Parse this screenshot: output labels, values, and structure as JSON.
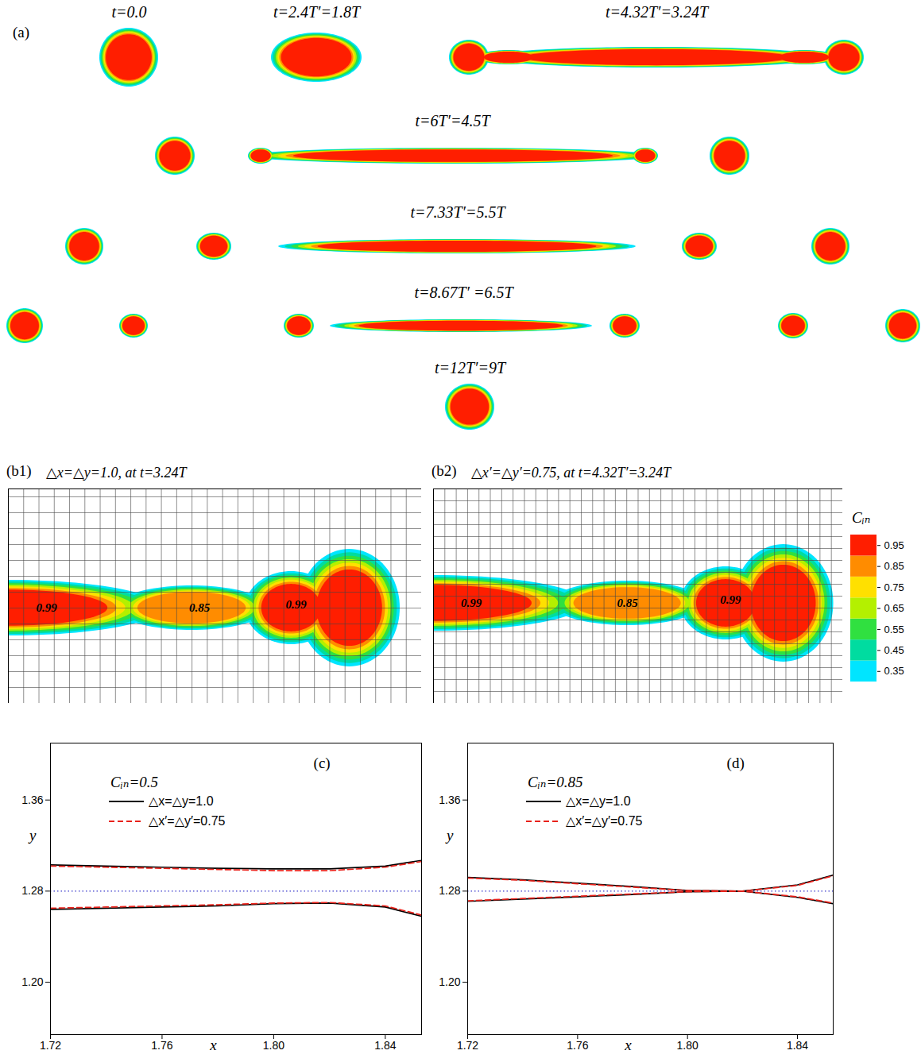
{
  "chart_data": [
    {
      "type": "droplet_snapshots",
      "panel": "(a)",
      "xlim": [
        0,
        1159
      ],
      "ylim": [
        0,
        545
      ],
      "tick_labels": false,
      "rows": [
        {
          "cy": 72,
          "labels": [
            "t=0.0",
            "t=2.4T′=1.8T",
            "t=4.32T′=3.24T"
          ],
          "drops": [
            {
              "cx": 162,
              "rx": 37,
              "ry": 37,
              "group": 0
            },
            {
              "cx": 398,
              "rx": 57,
              "ry": 31,
              "group": 1
            },
            {
              "cx": 590,
              "rx": 25,
              "ry": 22,
              "group": 2
            },
            {
              "cx": 640,
              "rx": 40,
              "ry": 9,
              "group": 2
            },
            {
              "cx": 826,
              "rx": 215,
              "ry": 13,
              "group": 2
            },
            {
              "cx": 1012,
              "rx": 40,
              "ry": 9,
              "group": 2
            },
            {
              "cx": 1062,
              "rx": 25,
              "ry": 22,
              "group": 2
            }
          ]
        },
        {
          "cy": 196,
          "labels": [
            "t=6T′=4.5T"
          ],
          "drops": [
            {
              "cx": 220,
              "rx": 25,
              "ry": 24,
              "group": 0
            },
            {
              "cx": 328,
              "rx": 16,
              "ry": 10,
              "group": 0
            },
            {
              "cx": 570,
              "rx": 258,
              "ry": 10,
              "group": 0
            },
            {
              "cx": 812,
              "rx": 16,
              "ry": 10,
              "group": 0
            },
            {
              "cx": 918,
              "rx": 25,
              "ry": 24,
              "group": 0
            }
          ]
        },
        {
          "cy": 310,
          "labels": [
            "t=7.33T′=5.5T"
          ],
          "drops": [
            {
              "cx": 106,
              "rx": 24,
              "ry": 23,
              "group": 0
            },
            {
              "cx": 269,
              "rx": 22,
              "ry": 17,
              "group": 0
            },
            {
              "cx": 575,
              "rx": 225,
              "ry": 9,
              "group": 0
            },
            {
              "cx": 880,
              "rx": 22,
              "ry": 17,
              "group": 0
            },
            {
              "cx": 1045,
              "rx": 24,
              "ry": 23,
              "group": 0
            }
          ]
        },
        {
          "cy": 410,
          "labels": [
            "t=8.67T′ =6.5T"
          ],
          "drops": [
            {
              "cx": 31,
              "rx": 23,
              "ry": 22,
              "group": 0
            },
            {
              "cx": 168,
              "rx": 18,
              "ry": 15,
              "group": 0
            },
            {
              "cx": 376,
              "rx": 19,
              "ry": 15,
              "group": 0
            },
            {
              "cx": 580,
              "rx": 165,
              "ry": 8,
              "group": 0
            },
            {
              "cx": 786,
              "rx": 19,
              "ry": 15,
              "group": 0
            },
            {
              "cx": 998,
              "rx": 19,
              "ry": 16,
              "group": 0
            },
            {
              "cx": 1136,
              "rx": 22,
              "ry": 21,
              "group": 0
            }
          ]
        },
        {
          "cy": 512,
          "labels": [
            "t=12T′=9T"
          ],
          "drops": [
            {
              "cx": 591,
              "rx": 31,
              "ry": 29,
              "group": 0
            }
          ]
        }
      ]
    },
    {
      "type": "contour",
      "panel": "(b1)",
      "title": "△x=△y=1.0, at t=3.24T",
      "mesh": 1.0,
      "xlim": [
        0,
        27
      ],
      "ylim": [
        0,
        13.5
      ],
      "tick_labels": false,
      "grid": true,
      "components": [
        {
          "cx": 0,
          "cy": 6.0,
          "rx": 10,
          "ry": 1.75,
          "peak": 0.99
        },
        {
          "cx": 12,
          "cy": 6.0,
          "rx": 5,
          "ry": 1.4,
          "peak": 0.85
        },
        {
          "cx": 18.5,
          "cy": 6.0,
          "rx": 3,
          "ry": 2.3,
          "peak": 0.99
        },
        {
          "cx": 22.3,
          "cy": 6.0,
          "rx": 3.3,
          "ry": 3.7,
          "peak": 0.99
        }
      ],
      "labels": [
        {
          "text": "0.99",
          "x": 2.5,
          "y": 6.0
        },
        {
          "text": "0.85",
          "x": 12.5,
          "y": 6.0
        },
        {
          "text": "0.99",
          "x": 18.8,
          "y": 6.2
        }
      ]
    },
    {
      "type": "contour",
      "panel": "(b2)",
      "title": "△x′=△y′=0.75, at t=4.32T′=3.24T",
      "mesh": 0.75,
      "xlim": [
        0,
        27
      ],
      "ylim": [
        0,
        13.5
      ],
      "tick_labels": false,
      "grid": true,
      "components": [
        {
          "cx": 0,
          "cy": 6.3,
          "rx": 10,
          "ry": 1.75,
          "peak": 0.99
        },
        {
          "cx": 12.8,
          "cy": 6.3,
          "rx": 5,
          "ry": 1.4,
          "peak": 0.85
        },
        {
          "cx": 19.3,
          "cy": 6.3,
          "rx": 3,
          "ry": 2.3,
          "peak": 0.99
        },
        {
          "cx": 23.1,
          "cy": 6.3,
          "rx": 3.3,
          "ry": 3.7,
          "peak": 0.99
        }
      ],
      "labels": [
        {
          "text": "0.99",
          "x": 2.5,
          "y": 6.3
        },
        {
          "text": "0.85",
          "x": 12.8,
          "y": 6.3
        },
        {
          "text": "0.99",
          "x": 19.6,
          "y": 6.5
        }
      ]
    },
    {
      "type": "colorbar",
      "title": "Cᵢₙ",
      "ylim": [
        0.3,
        1.0
      ],
      "levels": [
        0.35,
        0.45,
        0.55,
        0.65,
        0.75,
        0.85,
        0.95
      ],
      "colors": [
        "#00e5ff",
        "#00dca0",
        "#30e040",
        "#b4f000",
        "#ffe000",
        "#ff8c00",
        "#ff1e00"
      ],
      "yticks": [
        0.35,
        0.45,
        0.55,
        0.65,
        0.75,
        0.85,
        0.95
      ]
    },
    {
      "type": "line",
      "panel": "(c)",
      "annotation": "Cᵢₙ=0.5",
      "x_label": "x",
      "y_label": "y",
      "legend": "top-left",
      "x": [
        1.72,
        1.74,
        1.76,
        1.78,
        1.8,
        1.82,
        1.84,
        1.853
      ],
      "xlim": [
        1.72,
        1.853
      ],
      "xticks": [
        1.72,
        1.76,
        {
          "value": 1.8,
          "label": "1.80"
        },
        1.84
      ],
      "ylim": [
        1.154,
        1.41
      ],
      "yticks": [
        {
          "value": 1.2,
          "label": "1.20"
        },
        1.28,
        1.36
      ],
      "reference_line": {
        "y": 1.28,
        "color": "#3a3acc",
        "line_style": "dotted"
      },
      "series": [
        {
          "name": "△x=△y=1.0",
          "color": "#000000",
          "line_style": "solid",
          "branches": [
            [
              1.303,
              1.302,
              1.301,
              1.3,
              1.2995,
              1.2995,
              1.302,
              1.307
            ],
            [
              1.264,
              1.265,
              1.266,
              1.267,
              1.269,
              1.2695,
              1.266,
              1.258
            ]
          ]
        },
        {
          "name": "△x′=△y′=0.75",
          "color": "#e8211a",
          "line_style": "dashed",
          "branches": [
            [
              1.302,
              1.301,
              1.3,
              1.299,
              1.298,
              1.298,
              1.301,
              1.306
            ],
            [
              1.265,
              1.266,
              1.267,
              1.268,
              1.2695,
              1.27,
              1.267,
              1.259
            ]
          ]
        }
      ]
    },
    {
      "type": "line",
      "panel": "(d)",
      "annotation": "Cᵢₙ=0.85",
      "x_label": "x",
      "y_label": "y",
      "legend": "top-left",
      "x": [
        1.72,
        1.74,
        1.76,
        1.78,
        1.8,
        1.82,
        1.84,
        1.853
      ],
      "xlim": [
        1.72,
        1.853
      ],
      "xticks": [
        1.72,
        1.76,
        {
          "value": 1.8,
          "label": "1.80"
        },
        1.84
      ],
      "ylim": [
        1.154,
        1.41
      ],
      "yticks": [
        {
          "value": 1.2,
          "label": "1.20"
        },
        1.28,
        1.36
      ],
      "reference_line": {
        "y": 1.28,
        "color": "#3a3acc",
        "line_style": "dotted"
      },
      "series": [
        {
          "name": "△x=△y=1.0",
          "color": "#000000",
          "line_style": "solid",
          "branches": [
            [
              1.292,
              1.29,
              1.287,
              1.284,
              1.2805,
              1.28,
              1.2745,
              1.269
            ],
            [
              1.271,
              1.273,
              1.275,
              1.277,
              1.2795,
              1.28,
              1.2855,
              1.294
            ]
          ]
        },
        {
          "name": "△x′=△y′=0.75",
          "color": "#e8211a",
          "line_style": "dashed",
          "branches": [
            [
              1.2915,
              1.2895,
              1.2865,
              1.2835,
              1.2805,
              1.28,
              1.275,
              1.2695
            ],
            [
              1.2715,
              1.2735,
              1.2755,
              1.2775,
              1.2795,
              1.28,
              1.285,
              1.2935
            ]
          ]
        }
      ]
    }
  ]
}
